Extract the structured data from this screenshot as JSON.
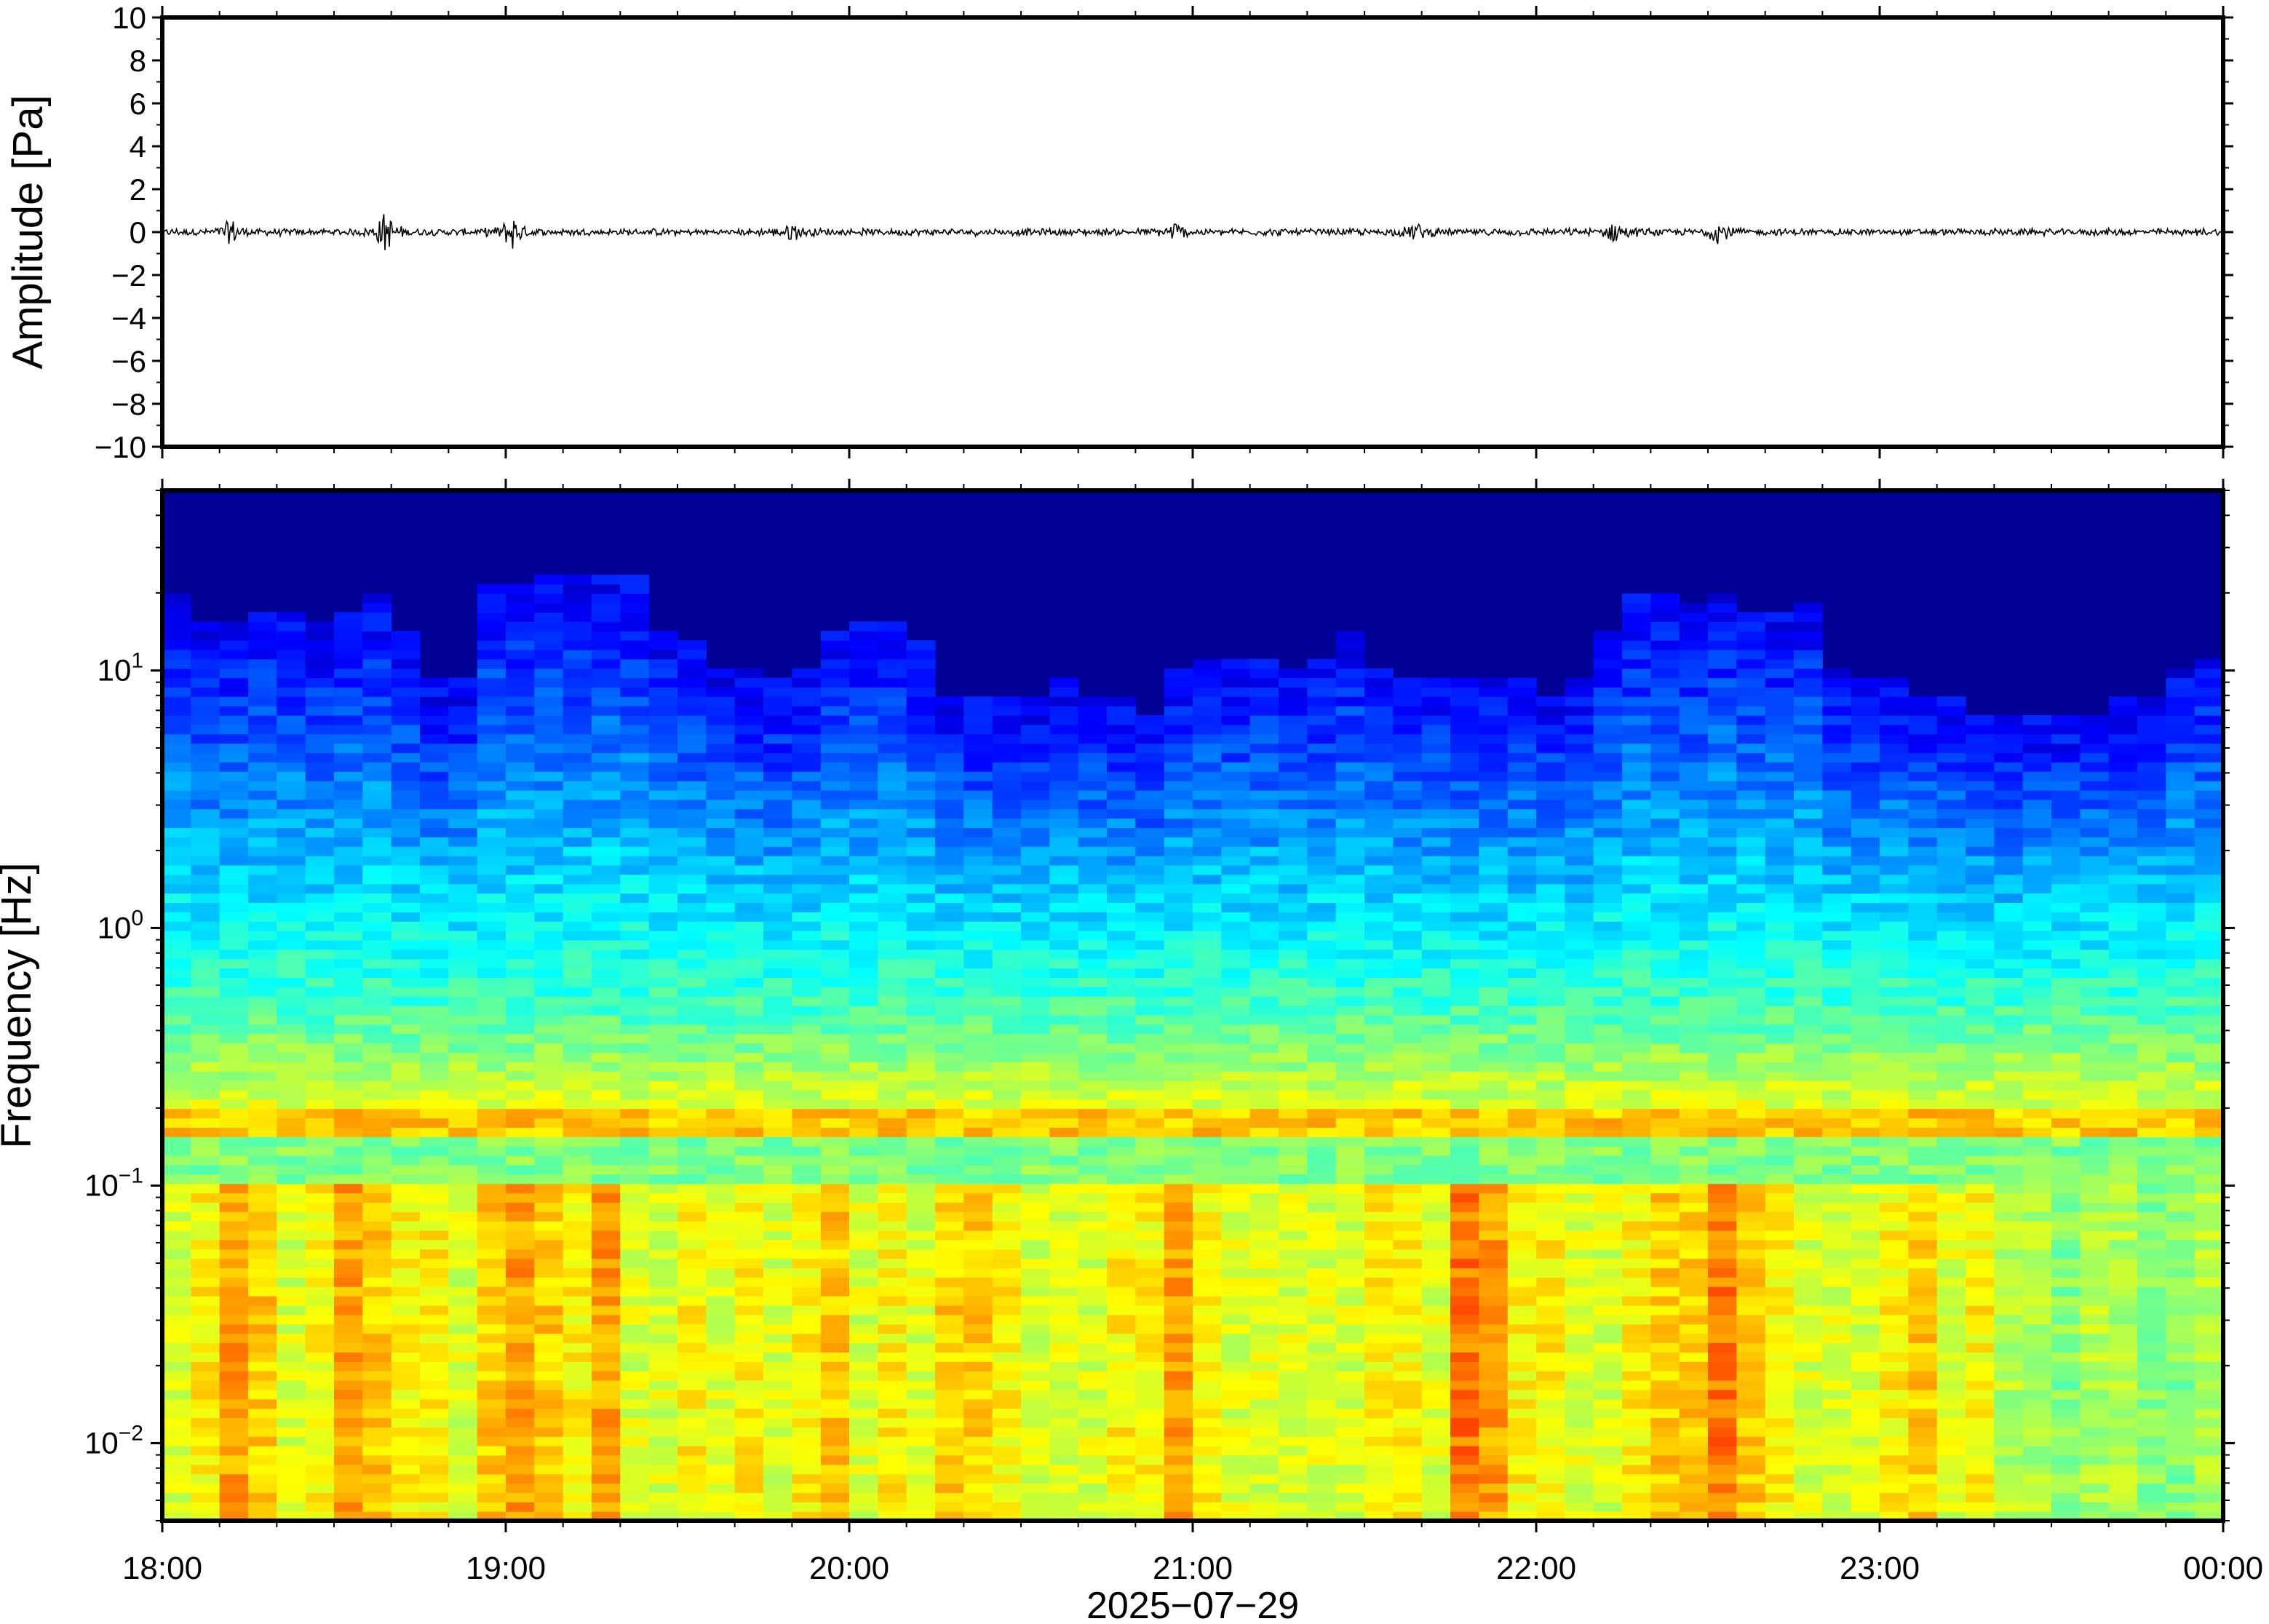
{
  "chart_data": [
    {
      "type": "line",
      "panel": "waveform",
      "ylabel": "Amplitude [Pa]",
      "ylim": [
        -10,
        10
      ],
      "yticks": [
        10,
        8,
        6,
        4,
        2,
        0,
        -2,
        -4,
        -6,
        -8,
        -10
      ],
      "ytick_labels": [
        "10",
        "8",
        "6",
        "4",
        "2",
        "0",
        "−2",
        "−4",
        "−6",
        "−8",
        "−10"
      ],
      "xlim": [
        "18:00",
        "00:00"
      ],
      "series": [
        {
          "color": "#000000",
          "baseline": 0,
          "noise_amplitude": 0.12,
          "spikes": [
            {
              "t": "18:12",
              "amplitude": 0.6
            },
            {
              "t": "18:39",
              "amplitude": 1.0
            },
            {
              "t": "19:01",
              "amplitude": 0.8
            },
            {
              "t": "19:50",
              "amplitude": 0.4
            },
            {
              "t": "20:57",
              "amplitude": 0.4
            },
            {
              "t": "21:39",
              "amplitude": 0.4
            },
            {
              "t": "22:14",
              "amplitude": 0.5
            },
            {
              "t": "22:32",
              "amplitude": 0.5
            }
          ]
        }
      ],
      "grid": false
    },
    {
      "type": "heatmap",
      "panel": "spectrogram",
      "ylabel": "Frequency [Hz]",
      "yscale": "log",
      "ylim": [
        0.005,
        50
      ],
      "yticks": [
        {
          "base": "10",
          "exp": "1",
          "value": 10
        },
        {
          "base": "10",
          "exp": "0",
          "value": 1
        },
        {
          "base": "10",
          "exp": "−1",
          "value": 0.1
        },
        {
          "base": "10",
          "exp": "−2",
          "value": 0.01
        }
      ],
      "xlim": [
        "18:00",
        "00:00"
      ],
      "xticks": [
        "18:00",
        "19:00",
        "20:00",
        "21:00",
        "22:00",
        "23:00",
        "00:00"
      ],
      "xlabel": "2025−07−29",
      "colormap": "jet",
      "time_columns": 72,
      "noise_ceiling_hz": [
        18,
        13,
        13,
        15,
        15,
        13,
        15,
        17,
        12,
        8,
        8,
        19,
        19,
        20,
        20,
        20,
        20,
        12,
        11,
        9,
        9,
        8,
        9,
        12,
        13,
        14,
        11,
        7,
        7,
        7,
        7,
        8,
        7,
        7,
        6,
        9,
        10,
        10,
        10,
        9,
        10,
        12,
        9,
        8,
        8,
        8,
        8,
        8,
        7,
        8,
        12,
        17,
        17,
        16,
        17,
        15,
        15,
        16,
        9,
        8,
        8,
        7,
        7,
        6,
        6,
        6,
        6,
        6,
        7,
        7,
        9,
        10
      ],
      "low_frequency_energy": [
        0.5,
        0.6,
        0.8,
        0.7,
        0.5,
        0.6,
        0.8,
        0.7,
        0.6,
        0.6,
        0.5,
        0.7,
        0.8,
        0.7,
        0.6,
        0.8,
        0.5,
        0.5,
        0.6,
        0.5,
        0.6,
        0.5,
        0.6,
        0.7,
        0.5,
        0.6,
        0.5,
        0.7,
        0.7,
        0.6,
        0.5,
        0.5,
        0.5,
        0.6,
        0.6,
        0.8,
        0.6,
        0.5,
        0.5,
        0.5,
        0.5,
        0.5,
        0.6,
        0.6,
        0.5,
        0.9,
        0.8,
        0.6,
        0.6,
        0.5,
        0.5,
        0.6,
        0.7,
        0.7,
        0.9,
        0.7,
        0.6,
        0.5,
        0.5,
        0.5,
        0.6,
        0.7,
        0.5,
        0.6,
        0.4,
        0.4,
        0.3,
        0.4,
        0.4,
        0.3,
        0.3,
        0.4
      ],
      "microseism_band_hz": [
        0.15,
        0.2
      ]
    }
  ]
}
